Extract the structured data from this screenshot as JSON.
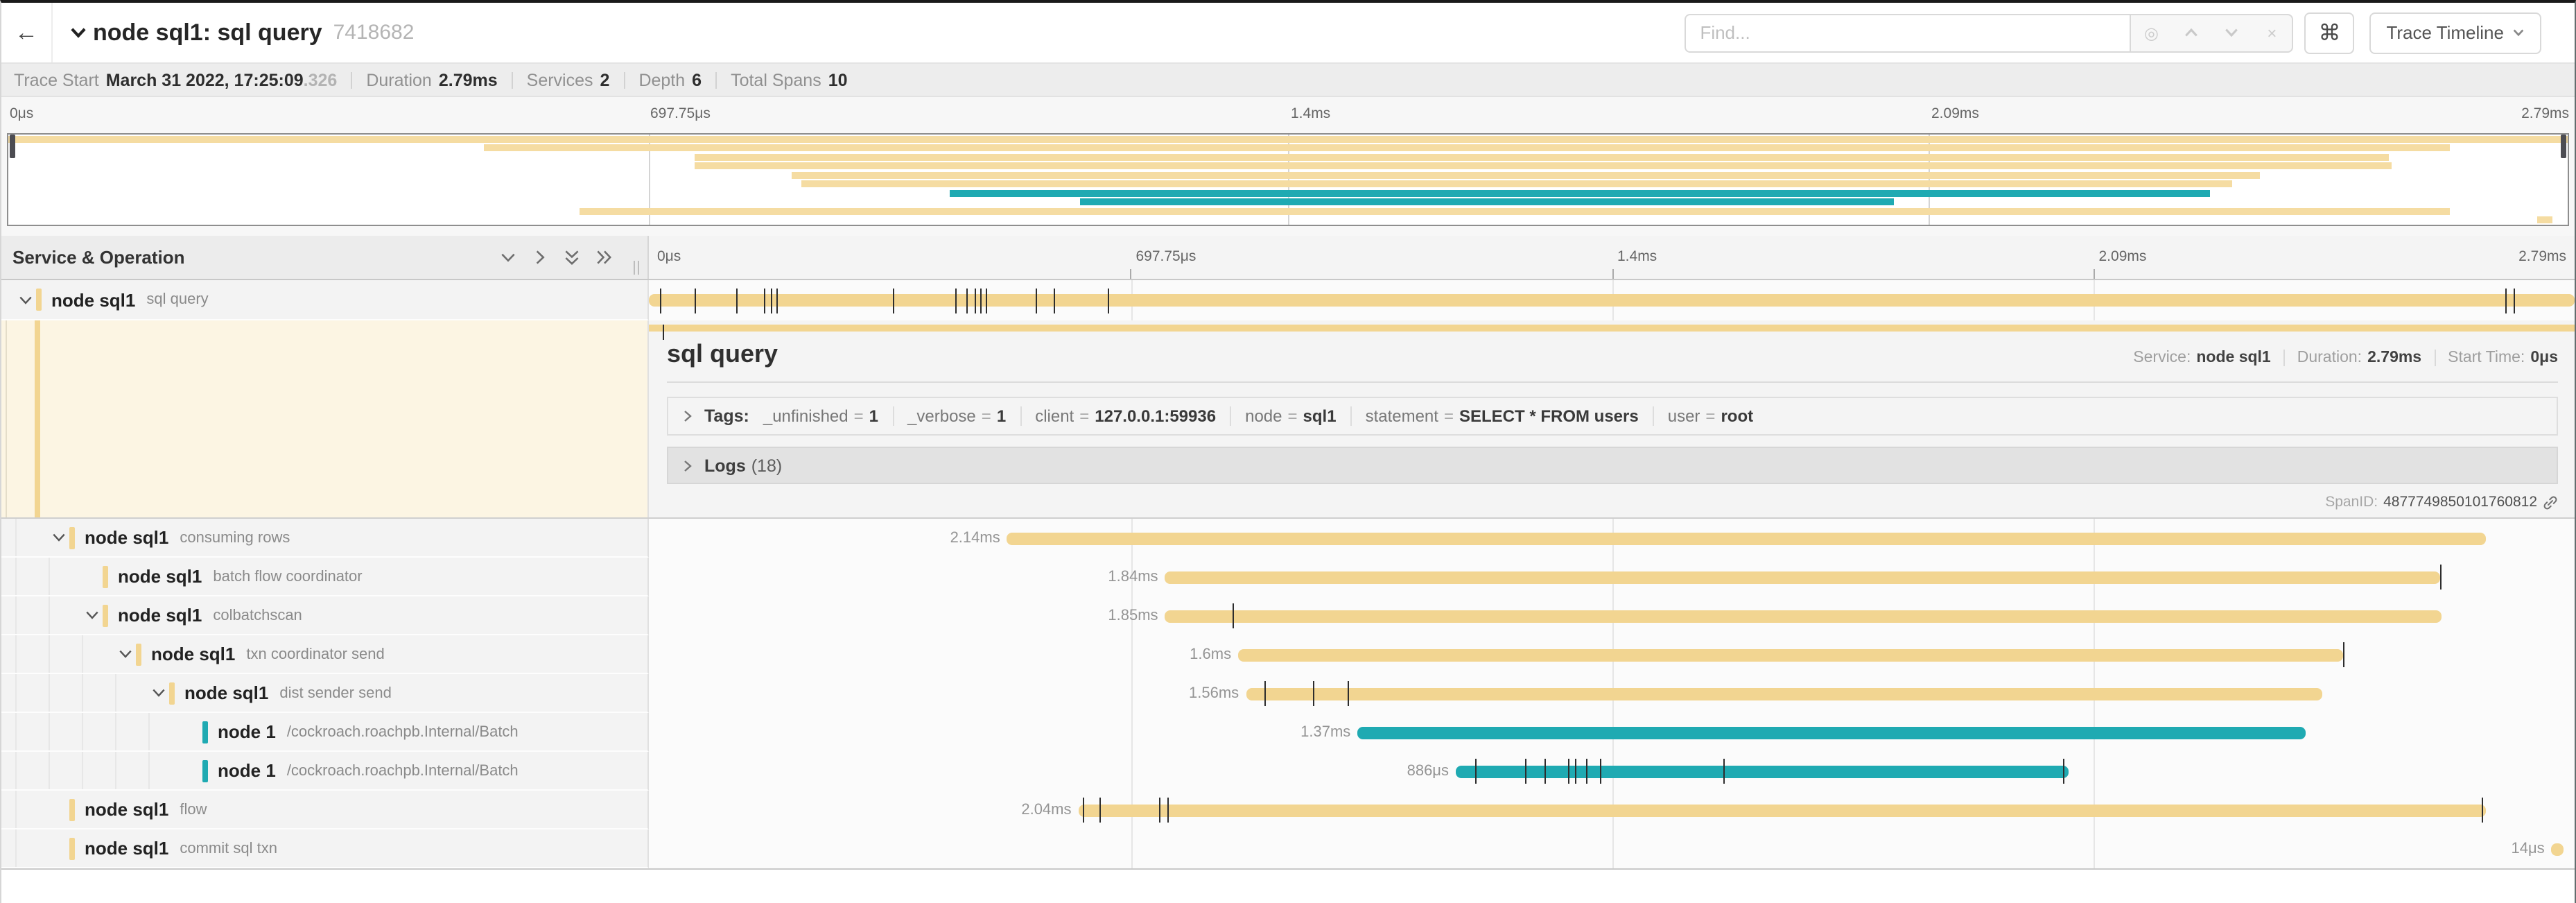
{
  "topnav": {
    "back_label": "←",
    "title": "node sql1: sql query",
    "trace_id_short": "7418682",
    "find_placeholder": "Find...",
    "clear_label": "×",
    "cmd_label": "⌘",
    "trace_timeline_label": "Trace Timeline"
  },
  "meta": {
    "items": [
      {
        "label": "Trace Start",
        "value": "March 31 2022, 17:25:09",
        "suffix": ".326"
      },
      {
        "label": "Duration",
        "value": "2.79ms",
        "suffix": ""
      },
      {
        "label": "Services",
        "value": "2",
        "suffix": ""
      },
      {
        "label": "Depth",
        "value": "6",
        "suffix": ""
      },
      {
        "label": "Total Spans",
        "value": "10",
        "suffix": ""
      }
    ]
  },
  "ruler": {
    "labels": [
      "0μs",
      "697.75μs",
      "1.4ms",
      "2.09ms",
      "2.79ms"
    ],
    "positions": [
      0,
      25,
      50,
      75,
      100
    ],
    "gridlines": [
      25,
      50,
      75
    ]
  },
  "panel": {
    "header": "Service & Operation"
  },
  "colors": {
    "khaki": "#F2D591",
    "khaki_light": "#F5DCA2",
    "teal": "#1FAAB2",
    "selected_bg": "#FCF5E3"
  },
  "spans": [
    {
      "service": "node sql1",
      "operation": "sql query",
      "level": 0,
      "chevron": true,
      "color": "khaki",
      "start": 0,
      "end": 100,
      "duration_label": "",
      "ticks": [
        0.6,
        2.4,
        4.5,
        6.0,
        6.3,
        6.6,
        12.7,
        15.9,
        16.5,
        16.9,
        17.2,
        17.5,
        20.1,
        21.0,
        23.8,
        96.4,
        96.8
      ]
    },
    {
      "service": "node sql1",
      "operation": "consuming rows",
      "level": 1,
      "chevron": true,
      "color": "khaki",
      "start": 18.6,
      "end": 95.4,
      "duration_label": "2.14ms",
      "ticks": []
    },
    {
      "service": "node sql1",
      "operation": "batch flow coordinator",
      "level": 2,
      "chevron": false,
      "color": "khaki",
      "start": 26.8,
      "end": 93.0,
      "duration_label": "1.84ms",
      "ticks": [
        93.0
      ]
    },
    {
      "service": "node sql1",
      "operation": "colbatchscan",
      "level": 2,
      "chevron": true,
      "color": "khaki",
      "start": 26.8,
      "end": 93.1,
      "duration_label": "1.85ms",
      "ticks": [
        30.3
      ]
    },
    {
      "service": "node sql1",
      "operation": "txn coordinator send",
      "level": 3,
      "chevron": true,
      "color": "khaki",
      "start": 30.6,
      "end": 88.0,
      "duration_label": "1.6ms",
      "ticks": [
        88.0
      ]
    },
    {
      "service": "node sql1",
      "operation": "dist sender send",
      "level": 4,
      "chevron": true,
      "color": "khaki",
      "start": 31.0,
      "end": 86.9,
      "duration_label": "1.56ms",
      "ticks": [
        32.0,
        34.5,
        36.3
      ]
    },
    {
      "service": "node 1",
      "operation": "/cockroach.roachpb.Internal/Batch",
      "level": 5,
      "chevron": false,
      "color": "teal",
      "start": 36.8,
      "end": 86.0,
      "duration_label": "1.37ms",
      "ticks": []
    },
    {
      "service": "node 1",
      "operation": "/cockroach.roachpb.Internal/Batch",
      "level": 5,
      "chevron": false,
      "color": "teal",
      "start": 41.9,
      "end": 73.7,
      "duration_label": "886μs",
      "ticks": [
        42.9,
        45.5,
        46.5,
        47.7,
        48.1,
        48.7,
        49.4,
        55.8,
        73.4
      ]
    },
    {
      "service": "node sql1",
      "operation": "flow",
      "level": 1,
      "chevron": false,
      "color": "khaki",
      "start": 22.3,
      "end": 95.4,
      "duration_label": "2.04ms",
      "ticks": [
        22.5,
        23.4,
        26.5,
        26.9,
        95.2
      ]
    },
    {
      "service": "node sql1",
      "operation": "commit sql txn",
      "level": 1,
      "chevron": false,
      "color": "khaki",
      "start": 98.8,
      "end": 99.4,
      "duration_label": "14μs",
      "ticks": []
    }
  ],
  "detail": {
    "title": "sql query",
    "service_label": "Service:",
    "service": "node sql1",
    "duration_label": "Duration:",
    "duration": "2.79ms",
    "start_label": "Start Time:",
    "start": "0μs",
    "tags_label": "Tags:",
    "tags": [
      {
        "key": "_unfinished",
        "value": "1"
      },
      {
        "key": "_verbose",
        "value": "1"
      },
      {
        "key": "client",
        "value": "127.0.0.1:59936"
      },
      {
        "key": "node",
        "value": "sql1"
      },
      {
        "key": "statement",
        "value": "SELECT * FROM users"
      },
      {
        "key": "user",
        "value": "root"
      }
    ],
    "logs_label": "Logs",
    "logs_count": "(18)",
    "span_id_label": "SpanID:",
    "span_id": "4877749850101760812",
    "thin_bar_ticks": [
      0.7
    ]
  }
}
